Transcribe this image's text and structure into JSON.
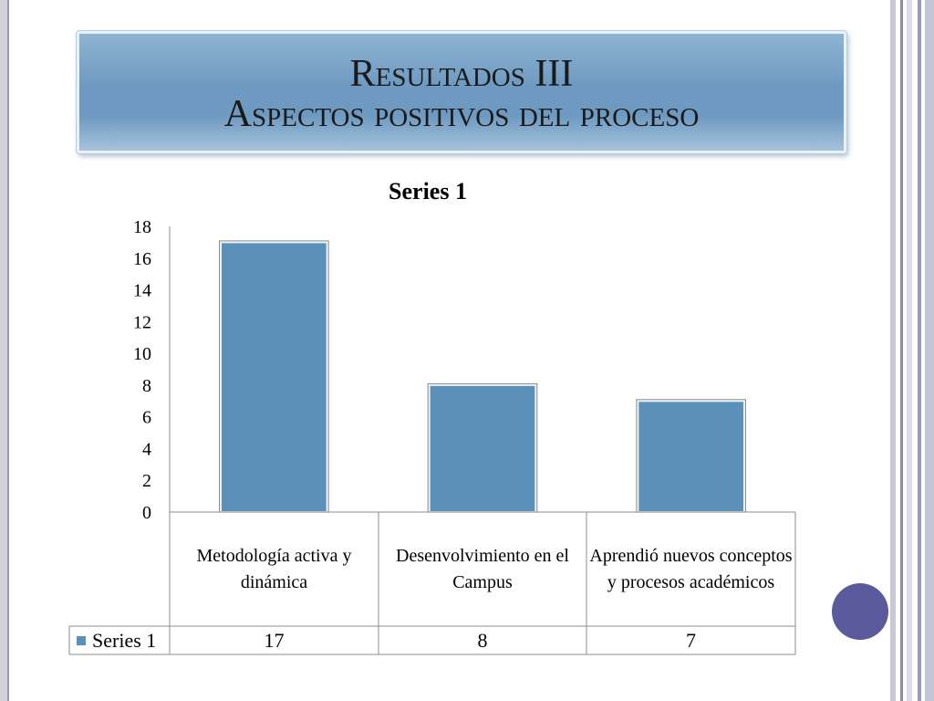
{
  "slide": {
    "title_line1": "Resultados III",
    "title_line2": "Aspectos positivos del proceso"
  },
  "chart_data": {
    "type": "bar",
    "title": "Series 1",
    "categories": [
      "Metodología activa y dinámica",
      "Desenvolvimiento en el Campus",
      "Aprendió nuevos conceptos y procesos académicos"
    ],
    "series": [
      {
        "name": "Series 1",
        "values": [
          17,
          8,
          7
        ]
      }
    ],
    "ylim": [
      0,
      18
    ],
    "yticks": [
      0,
      2,
      4,
      6,
      8,
      10,
      12,
      14,
      16,
      18
    ],
    "bar_color": "#5b90b8",
    "legend": "data-table",
    "grid": false
  },
  "table": {
    "legend_label": "Series 1",
    "values": [
      "17",
      "8",
      "7"
    ]
  },
  "colors": {
    "title_box": "#6e9ac1",
    "accent_circle": "#5a5a9c"
  }
}
